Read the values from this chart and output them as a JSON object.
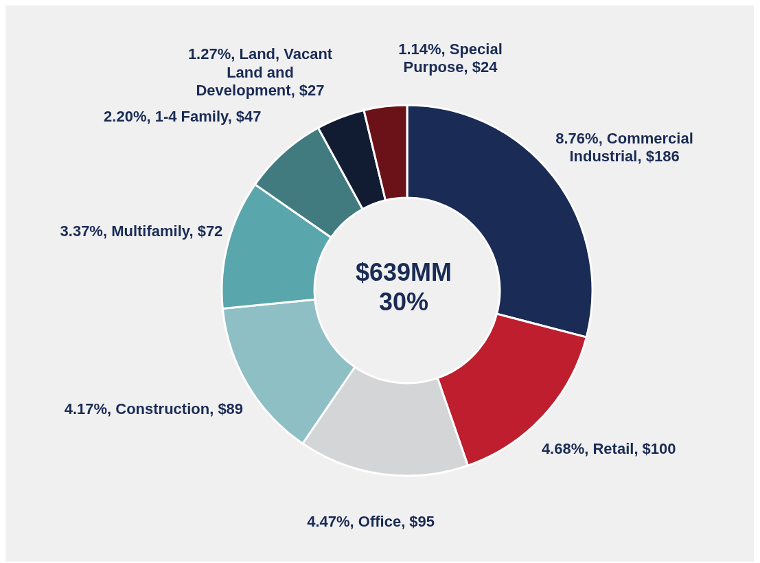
{
  "chart_data": {
    "type": "donut",
    "categories": [
      "8.76%, Commercial Industrial",
      "4.68%, Retail",
      "4.47%, Office",
      "4.17%, Construction",
      "3.37%, Multifamily",
      "2.20%, 1-4 Family",
      "1.27%, Land, Vacant Land and Development",
      "1.14%, Special Purpose"
    ],
    "values": [
      186,
      100,
      95,
      89,
      72,
      47,
      27,
      24
    ],
    "colors": [
      "#1a2b55",
      "#be1e2d",
      "#d4d5d7",
      "#8ebfc4",
      "#5aa6ad",
      "#417b80",
      "#111c33",
      "#6b1219"
    ],
    "value_labels": [
      "$186",
      "$100",
      "$95",
      "$89",
      "$72",
      "$47",
      "$27",
      "$24"
    ],
    "annotations": [
      "$639MM",
      "30%"
    ]
  }
}
